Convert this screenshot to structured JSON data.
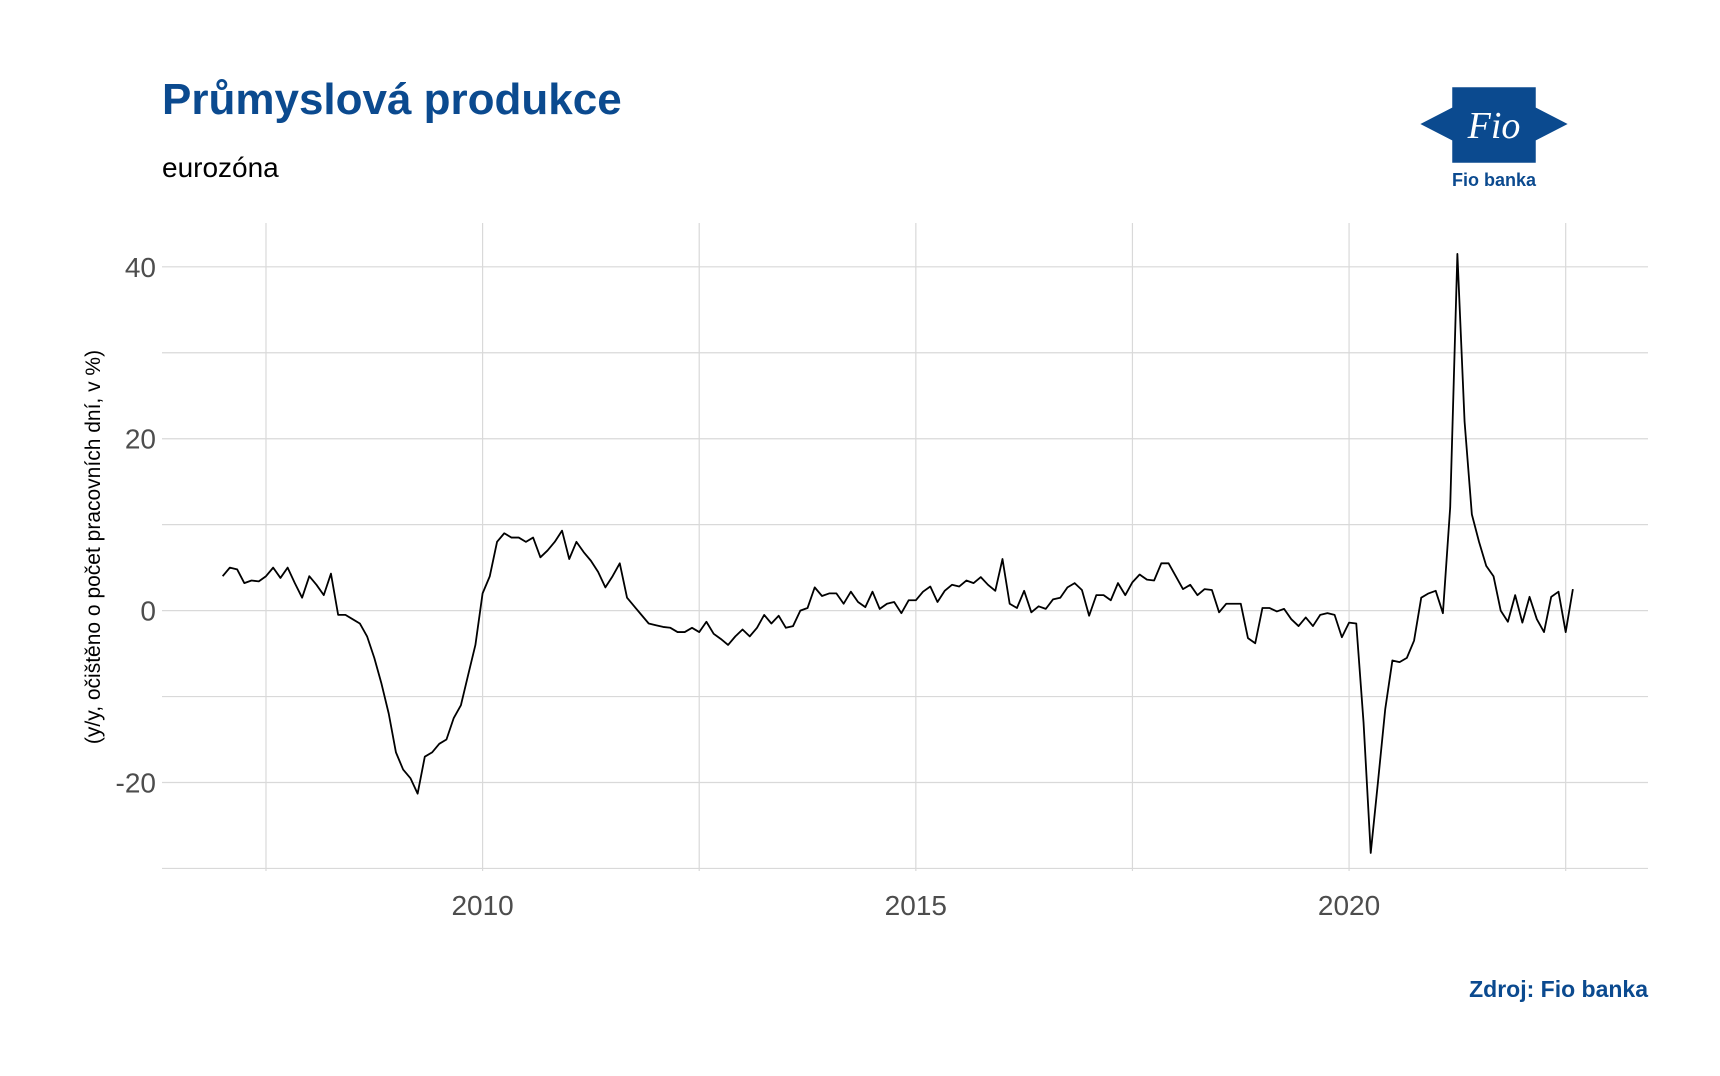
{
  "chart_data": {
    "type": "line",
    "title": "Průmyslová produkce",
    "subtitle": "eurozóna",
    "y_label": "(y/y, očištěno o počet pracovních dní, v %)",
    "source": "Zdroj: Fio banka",
    "logo_text": "Fio",
    "logo_caption": "Fio banka",
    "xlim": [
      2006.3,
      2023.45
    ],
    "xticks": [
      2010,
      2015,
      2020
    ],
    "ylim": [
      -30.3,
      45.1
    ],
    "yticks": [
      -20,
      0,
      20,
      40
    ],
    "grid": true,
    "x": [
      2007.0,
      2007.083,
      2007.167,
      2007.25,
      2007.333,
      2007.417,
      2007.5,
      2007.583,
      2007.667,
      2007.75,
      2007.833,
      2007.917,
      2008.0,
      2008.083,
      2008.167,
      2008.25,
      2008.333,
      2008.417,
      2008.5,
      2008.583,
      2008.667,
      2008.75,
      2008.833,
      2008.917,
      2009.0,
      2009.083,
      2009.167,
      2009.25,
      2009.333,
      2009.417,
      2009.5,
      2009.583,
      2009.667,
      2009.75,
      2009.833,
      2009.917,
      2010.0,
      2010.083,
      2010.167,
      2010.25,
      2010.333,
      2010.417,
      2010.5,
      2010.583,
      2010.667,
      2010.75,
      2010.833,
      2010.917,
      2011.0,
      2011.083,
      2011.167,
      2011.25,
      2011.333,
      2011.417,
      2011.5,
      2011.583,
      2011.667,
      2011.75,
      2011.833,
      2011.917,
      2012.0,
      2012.083,
      2012.167,
      2012.25,
      2012.333,
      2012.417,
      2012.5,
      2012.583,
      2012.667,
      2012.75,
      2012.833,
      2012.917,
      2013.0,
      2013.083,
      2013.167,
      2013.25,
      2013.333,
      2013.417,
      2013.5,
      2013.583,
      2013.667,
      2013.75,
      2013.833,
      2013.917,
      2014.0,
      2014.083,
      2014.167,
      2014.25,
      2014.333,
      2014.417,
      2014.5,
      2014.583,
      2014.667,
      2014.75,
      2014.833,
      2014.917,
      2015.0,
      2015.083,
      2015.167,
      2015.25,
      2015.333,
      2015.417,
      2015.5,
      2015.583,
      2015.667,
      2015.75,
      2015.833,
      2015.917,
      2016.0,
      2016.083,
      2016.167,
      2016.25,
      2016.333,
      2016.417,
      2016.5,
      2016.583,
      2016.667,
      2016.75,
      2016.833,
      2016.917,
      2017.0,
      2017.083,
      2017.167,
      2017.25,
      2017.333,
      2017.417,
      2017.5,
      2017.583,
      2017.667,
      2017.75,
      2017.833,
      2017.917,
      2018.0,
      2018.083,
      2018.167,
      2018.25,
      2018.333,
      2018.417,
      2018.5,
      2018.583,
      2018.667,
      2018.75,
      2018.833,
      2018.917,
      2019.0,
      2019.083,
      2019.167,
      2019.25,
      2019.333,
      2019.417,
      2019.5,
      2019.583,
      2019.667,
      2019.75,
      2019.833,
      2019.917,
      2020.0,
      2020.083,
      2020.167,
      2020.25,
      2020.333,
      2020.417,
      2020.5,
      2020.583,
      2020.667,
      2020.75,
      2020.833,
      2020.917,
      2021.0,
      2021.083,
      2021.167,
      2021.25,
      2021.333,
      2021.417,
      2021.5,
      2021.583,
      2021.667,
      2021.75,
      2021.833,
      2021.917,
      2022.0,
      2022.083,
      2022.167,
      2022.25,
      2022.333,
      2022.417,
      2022.5,
      2022.583
    ],
    "series": [
      {
        "color": "#000000",
        "values": [
          4,
          5,
          4.8,
          3.2,
          3.5,
          3.4,
          4,
          5,
          3.8,
          5,
          3.2,
          1.5,
          4,
          3,
          1.8,
          4.3,
          -0.5,
          -0.5,
          -1,
          -1.5,
          -3,
          -5.5,
          -8.5,
          -12,
          -16.5,
          -18.5,
          -19.5,
          -21.3,
          -17,
          -16.5,
          -15.5,
          -15,
          -12.5,
          -11,
          -7.5,
          -4,
          2,
          4,
          8,
          9,
          8.5,
          8.5,
          8,
          8.5,
          6.2,
          7,
          8,
          9.3,
          6,
          8,
          6.8,
          5.8,
          4.5,
          2.7,
          4,
          5.5,
          1.5,
          0.5,
          -0.5,
          -1.5,
          -1.7,
          -1.9,
          -2,
          -2.5,
          -2.5,
          -2,
          -2.5,
          -1.3,
          -2.7,
          -3.3,
          -4,
          -3,
          -2.2,
          -3,
          -2,
          -0.5,
          -1.5,
          -0.6,
          -2,
          -1.8,
          0,
          0.3,
          2.7,
          1.7,
          2,
          2,
          0.8,
          2.2,
          1,
          0.4,
          2.2,
          0.2,
          0.8,
          1,
          -0.3,
          1.2,
          1.2,
          2.2,
          2.8,
          1,
          2.3,
          3,
          2.8,
          3.5,
          3.2,
          3.9,
          3,
          2.3,
          6,
          0.8,
          0.3,
          2.3,
          -0.2,
          0.5,
          0.2,
          1.3,
          1.5,
          2.7,
          3.2,
          2.4,
          -0.6,
          1.8,
          1.8,
          1.2,
          3.2,
          1.8,
          3.3,
          4.2,
          3.6,
          3.5,
          5.5,
          5.5,
          4,
          2.5,
          3,
          1.8,
          2.5,
          2.4,
          -0.2,
          0.8,
          0.8,
          0.8,
          -3.2,
          -3.8,
          0.3,
          0.3,
          -0.1,
          0.2,
          -1,
          -1.8,
          -0.8,
          -1.8,
          -0.5,
          -0.3,
          -0.5,
          -3.1,
          -1.4,
          -1.5,
          -13,
          -28.2,
          -20,
          -11.5,
          -5.8,
          -6,
          -5.5,
          -3.5,
          1.5,
          2,
          2.3,
          -0.3,
          12,
          41.5,
          22,
          11.2,
          8,
          5.2,
          4,
          0,
          -1.3,
          1.8,
          -1.4,
          1.6,
          -1,
          -2.5,
          1.6,
          2.2,
          -2.5,
          2.5
        ]
      }
    ]
  }
}
